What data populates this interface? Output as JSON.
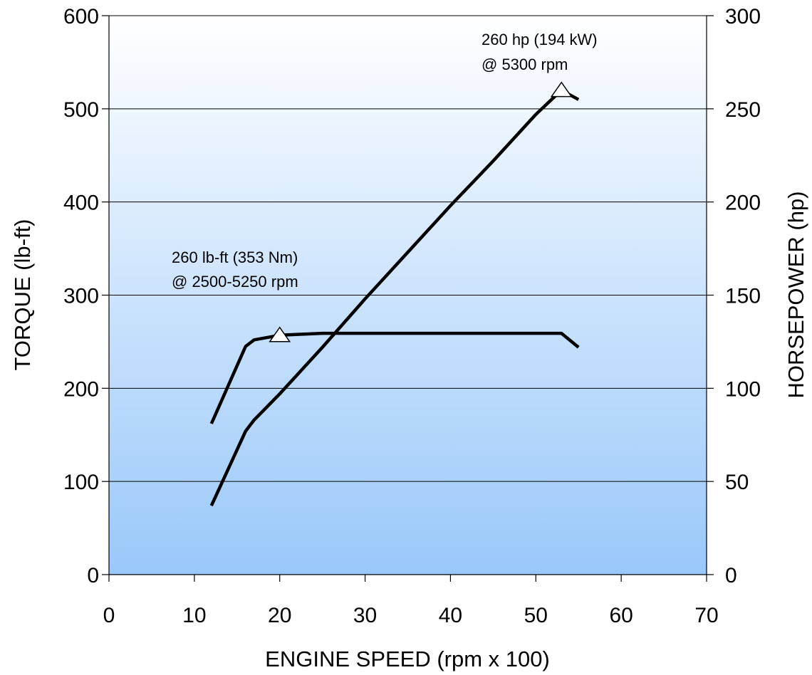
{
  "chart_data": {
    "type": "line",
    "xlabel": "ENGINE SPEED (rpm x 100)",
    "ylabel_left": "TORQUE (lb-ft)",
    "ylabel_right": "HORSEPOWER (hp)",
    "xlim": [
      0,
      70
    ],
    "ylim_left": [
      0,
      600
    ],
    "ylim_right": [
      0,
      300
    ],
    "x_ticks": [
      0,
      10,
      20,
      30,
      40,
      50,
      60,
      70
    ],
    "y_left_ticks": [
      0,
      100,
      200,
      300,
      400,
      500,
      600
    ],
    "y_right_ticks": [
      0,
      50,
      100,
      150,
      200,
      250,
      300
    ],
    "grid": true,
    "background": {
      "top_color": "#ffffff",
      "bottom_color": "#99c8fa"
    },
    "line_color": "#000000",
    "series": [
      {
        "axis": "left",
        "x": [
          12,
          16,
          17,
          20,
          25,
          30,
          40,
          50,
          53,
          55
        ],
        "values": [
          162,
          245,
          252,
          257,
          259,
          259,
          259,
          259,
          259,
          244
        ],
        "marker": {
          "x": 20,
          "y": 257
        }
      },
      {
        "axis": "right",
        "x": [
          12,
          16,
          17,
          20,
          25,
          30,
          35,
          40,
          45,
          50,
          53,
          55
        ],
        "values": [
          37,
          77,
          83,
          97,
          122,
          148,
          173,
          198,
          222,
          247,
          260,
          255
        ],
        "marker": {
          "x": 53,
          "y": 260
        }
      }
    ],
    "annotations": [
      {
        "lines": [
          "260 lb-ft (353 Nm)",
          "@ 2500-5250 rpm"
        ]
      },
      {
        "lines": [
          "260 hp (194 kW)",
          "@ 5300 rpm"
        ]
      }
    ]
  }
}
